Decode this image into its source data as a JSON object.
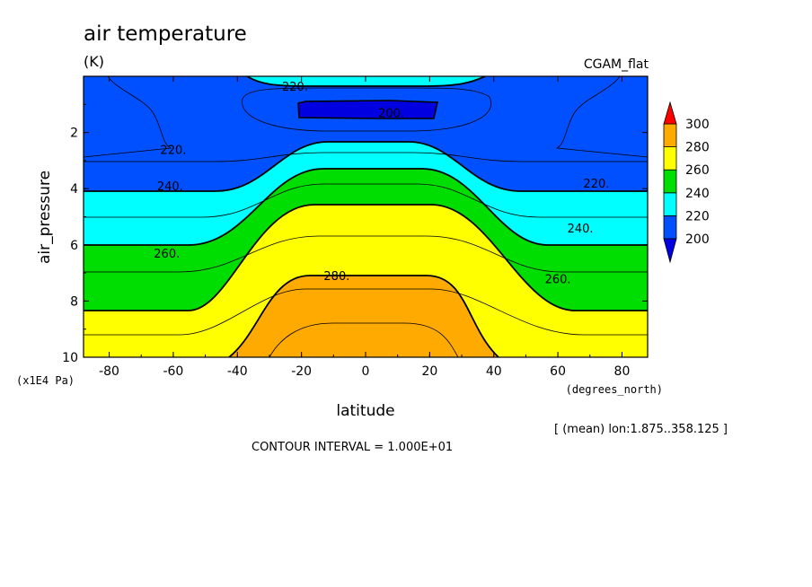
{
  "chart_data": {
    "type": "heatmap",
    "title": "air temperature",
    "units": "(K)",
    "dataset": "CGAM_flat",
    "xlabel": "latitude",
    "xunits": "(degrees_north)",
    "ylabel": "air_pressure",
    "yunits": "(x1E4 Pa)",
    "xlim": [
      -88,
      88
    ],
    "ylim": [
      0,
      10
    ],
    "y_inverted": true,
    "x_ticks": [
      -80,
      -60,
      -40,
      -20,
      0,
      20,
      40,
      60,
      80
    ],
    "x_tick_labels": [
      "-80",
      "-60",
      "-40",
      "-20",
      "0",
      "20",
      "40",
      "60",
      "80"
    ],
    "y_ticks": [
      2,
      4,
      6,
      8,
      10
    ],
    "y_tick_labels": [
      "2",
      "4",
      "6",
      "8",
      "10"
    ],
    "contour_interval": "CONTOUR INTERVAL = 1.000E+01",
    "mean_note": "[ (mean) lon:1.875..358.125 ]",
    "contour_labels": [
      {
        "text": "220.",
        "x": -22,
        "y": 0.35
      },
      {
        "text": "200.",
        "x": 8,
        "y": 1.3
      },
      {
        "text": "220.",
        "x": -60,
        "y": 2.6
      },
      {
        "text": "220.",
        "x": 72,
        "y": 3.8
      },
      {
        "text": "240.",
        "x": -61,
        "y": 3.9
      },
      {
        "text": "240.",
        "x": 67,
        "y": 5.4
      },
      {
        "text": "260.",
        "x": -62,
        "y": 6.3
      },
      {
        "text": "260.",
        "x": 60,
        "y": 7.2
      },
      {
        "text": "280.",
        "x": -9,
        "y": 7.1
      }
    ],
    "colorbar": {
      "levels": [
        200,
        220,
        240,
        260,
        280,
        300
      ],
      "labels": [
        "200",
        "220",
        "240",
        "260",
        "280",
        "300"
      ],
      "colors": [
        "#0050ff",
        "#00ffff",
        "#00dd00",
        "#ffff00",
        "#ffaa00"
      ],
      "under_color": "#0000e0",
      "over_color": "#ff0000"
    },
    "bands": [
      {
        "min": 200,
        "max": 220,
        "color": "#0050ff"
      },
      {
        "min": 220,
        "max": 240,
        "color": "#00ffff"
      },
      {
        "min": 240,
        "max": 260,
        "color": "#00dd00"
      },
      {
        "min": 260,
        "max": 280,
        "color": "#ffff00"
      },
      {
        "min": 280,
        "max": 300,
        "color": "#ffaa00"
      }
    ],
    "grid": false
  }
}
